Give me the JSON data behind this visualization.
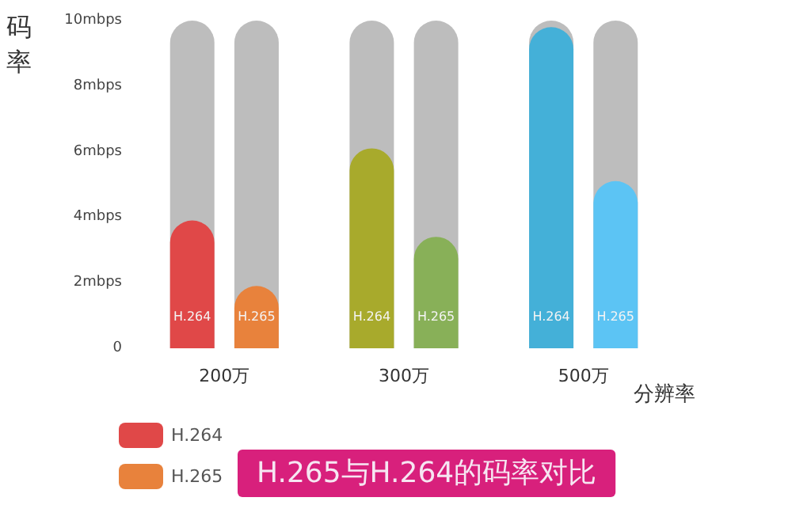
{
  "chart_data": {
    "type": "bar",
    "title": "H.265与H.264的码率对比",
    "xlabel": "分辨率",
    "ylabel": "码率",
    "categories": [
      "200万",
      "300万",
      "500万"
    ],
    "series": [
      {
        "name": "H.264",
        "color": "#e04848",
        "colors": [
          "#e04848",
          "#a8aa2c",
          "#44b0d8"
        ],
        "values": [
          3.9,
          6.1,
          9.8
        ]
      },
      {
        "name": "H.265",
        "color": "#e8823c",
        "colors": [
          "#e8823c",
          "#88b058",
          "#5cc4f4"
        ],
        "values": [
          1.9,
          3.4,
          5.1
        ]
      }
    ],
    "ylim": [
      0,
      10
    ],
    "yticks": [
      0,
      {
        "value": 2,
        "label": "2mbps"
      },
      {
        "value": 4,
        "label": "4mbps"
      },
      {
        "value": 6,
        "label": "6mbps"
      },
      {
        "value": 8,
        "label": "8mbps"
      },
      {
        "value": 10,
        "label": "10mbps"
      }
    ],
    "legend": "bottom left"
  }
}
